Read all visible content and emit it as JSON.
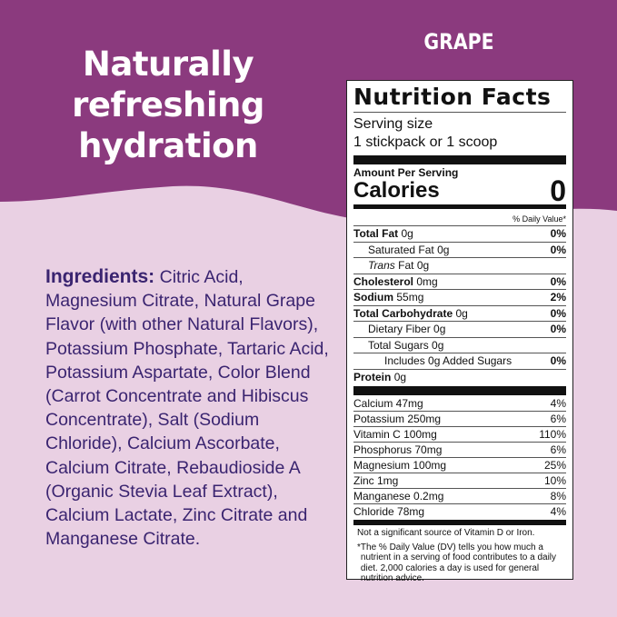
{
  "colors": {
    "top": "#8b3a7e",
    "bottom": "#e9d0e3",
    "ingredients_text": "#3a2470"
  },
  "headline": [
    "Naturally",
    "refreshing",
    "hydration"
  ],
  "flavor": "GRAPE",
  "ingredients": {
    "label": "Ingredients:",
    "text": "Citric Acid, Magnesium Citrate, Natural Grape Flavor (with other Natural Flavors), Potassium Phosphate, Tartaric Acid, Potassium Aspartate, Color Blend (Carrot Concentrate and Hibiscus Concentrate), Salt (Sodium Chloride), Calcium Ascorbate, Calcium Citrate, Rebaudioside A (Organic Stevia Leaf Extract), Calcium Lactate, Zinc Citrate and Manganese Citrate."
  },
  "nutrition": {
    "title": "Nutrition Facts",
    "serving_label": "Serving size",
    "serving_value": "1 stickpack or 1 scoop",
    "amount_per_serving": "Amount Per Serving",
    "calories_label": "Calories",
    "calories_value": "0",
    "daily_value_header": "% Daily Value*",
    "rows": [
      {
        "name": "Total Fat",
        "amount": "0g",
        "dv": "0%"
      },
      {
        "name": "Saturated Fat",
        "amount": "0g",
        "dv": "0%"
      },
      {
        "name": "Trans",
        "amount": "Fat 0g",
        "dv": ""
      },
      {
        "name": "Cholesterol",
        "amount": "0mg",
        "dv": "0%"
      },
      {
        "name": "Sodium",
        "amount": "55mg",
        "dv": "2%"
      },
      {
        "name": "Total Carbohydrate",
        "amount": "0g",
        "dv": "0%"
      },
      {
        "name": "Dietary Fiber",
        "amount": "0g",
        "dv": "0%"
      },
      {
        "name": "Total Sugars",
        "amount": "0g",
        "dv": ""
      },
      {
        "name": "Includes 0g Added Sugars",
        "amount": "",
        "dv": "0%"
      },
      {
        "name": "Protein",
        "amount": "0g",
        "dv": ""
      }
    ],
    "vitamins": [
      {
        "name": "Calcium 47mg",
        "dv": "4%"
      },
      {
        "name": "Potassium 250mg",
        "dv": "6%"
      },
      {
        "name": "Vitamin C 100mg",
        "dv": "110%"
      },
      {
        "name": "Phosphorus 70mg",
        "dv": "6%"
      },
      {
        "name": "Magnesium 100mg",
        "dv": "25%"
      },
      {
        "name": "Zinc 1mg",
        "dv": "10%"
      },
      {
        "name": "Manganese 0.2mg",
        "dv": "8%"
      },
      {
        "name": "Chloride 78mg",
        "dv": "4%"
      }
    ],
    "footnote_1": "Not a significant source of Vitamin D or Iron.",
    "footnote_star": "*",
    "footnote_2": "The % Daily Value (DV) tells you how much a nutrient in a serving of food contributes to a daily diet. 2,000 calories a day is used for general nutrition advice."
  }
}
